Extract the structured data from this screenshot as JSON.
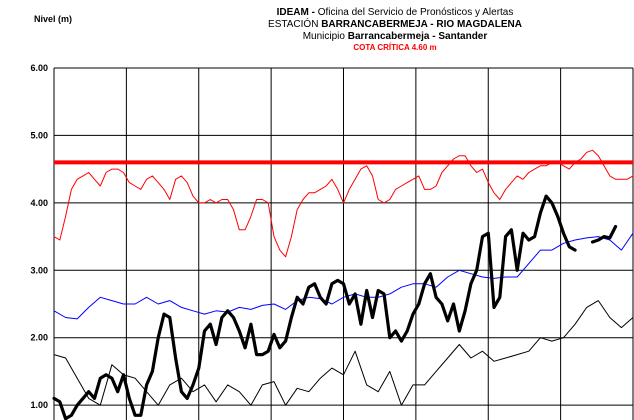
{
  "title": {
    "line1_bold": "IDEAM - ",
    "line1_rest": "Oficina del Servicio de Pronósticos y Alertas",
    "line2_pre": "ESTACIÓN ",
    "line2_bold": "BARRANCABERMEJA - RIO MAGDALENA",
    "line3_pre": "Municipio ",
    "line3_bold": "Barrancabermeja - Santander",
    "critical_label": "COTA CRÍTICA 4.60 m"
  },
  "chart_data": {
    "type": "line",
    "ylabel": "Nivel (m)",
    "ylim": [
      0.78,
      6.0
    ],
    "yticks": [
      1.0,
      2.0,
      3.0,
      4.0,
      5.0,
      6.0
    ],
    "ytick_labels": [
      "1.00",
      "2.00",
      "3.00",
      "4.00",
      "5.00",
      "6.00"
    ],
    "x_divisions": 8,
    "xlim": [
      0,
      100
    ],
    "grid": true,
    "critical_level": 4.6,
    "series": [
      {
        "color": "#ff0000",
        "width": 1,
        "x": [
          0,
          1,
          2,
          3,
          4,
          5,
          6,
          7,
          8,
          9,
          10,
          11,
          12,
          13,
          14,
          15,
          16,
          17,
          18,
          19,
          20,
          21,
          22,
          23,
          24,
          25,
          26,
          27,
          28,
          29,
          30,
          31,
          32,
          33,
          34,
          35,
          36,
          37,
          38,
          39,
          40,
          41,
          42,
          43,
          44,
          45,
          46,
          47,
          48,
          49,
          50,
          51,
          52,
          53,
          54,
          55,
          56,
          57,
          58,
          59,
          60,
          61,
          62,
          63,
          64,
          65,
          66,
          67,
          68,
          69,
          70,
          71,
          72,
          73,
          74,
          75,
          76,
          77,
          78,
          79,
          80,
          81,
          82,
          83,
          84,
          85,
          86,
          87,
          88,
          89,
          90,
          91,
          92,
          93,
          94,
          95,
          96,
          97,
          98,
          99,
          100
        ],
        "values": [
          3.5,
          3.45,
          3.8,
          4.2,
          4.35,
          4.4,
          4.45,
          4.35,
          4.25,
          4.45,
          4.5,
          4.5,
          4.45,
          4.3,
          4.25,
          4.2,
          4.35,
          4.4,
          4.3,
          4.2,
          4.05,
          4.35,
          4.4,
          4.3,
          4.1,
          4.0,
          4.0,
          4.05,
          4.0,
          4.05,
          4.05,
          3.9,
          3.6,
          3.6,
          3.8,
          4.05,
          4.05,
          4.0,
          3.5,
          3.3,
          3.2,
          3.5,
          3.9,
          4.05,
          4.15,
          4.15,
          4.2,
          4.25,
          4.35,
          4.2,
          4.0,
          4.2,
          4.35,
          4.5,
          4.55,
          4.4,
          4.05,
          4.0,
          4.05,
          4.2,
          4.25,
          4.3,
          4.35,
          4.4,
          4.2,
          4.2,
          4.25,
          4.45,
          4.55,
          4.65,
          4.7,
          4.7,
          4.55,
          4.45,
          4.5,
          4.3,
          4.15,
          4.05,
          4.2,
          4.3,
          4.4,
          4.35,
          4.45,
          4.5,
          4.55,
          4.55,
          4.6,
          4.6,
          4.55,
          4.5,
          4.6,
          4.65,
          4.75,
          4.78,
          4.7,
          4.55,
          4.4,
          4.35,
          4.35,
          4.35,
          4.4
        ]
      },
      {
        "color": "#0000ff",
        "width": 1,
        "x": [
          0,
          2,
          4,
          6,
          8,
          10,
          12,
          14,
          16,
          18,
          20,
          22,
          24,
          26,
          28,
          30,
          32,
          34,
          36,
          38,
          40,
          42,
          44,
          46,
          48,
          50,
          52,
          54,
          56,
          58,
          60,
          62,
          64,
          66,
          68,
          70,
          72,
          74,
          76,
          78,
          80,
          82,
          84,
          86,
          88,
          90,
          92,
          94,
          96,
          98,
          100
        ],
        "values": [
          2.4,
          2.3,
          2.28,
          2.45,
          2.6,
          2.55,
          2.5,
          2.5,
          2.6,
          2.5,
          2.55,
          2.45,
          2.4,
          2.35,
          2.4,
          2.38,
          2.45,
          2.42,
          2.48,
          2.5,
          2.42,
          2.55,
          2.6,
          2.58,
          2.5,
          2.6,
          2.65,
          2.6,
          2.6,
          2.65,
          2.75,
          2.8,
          2.8,
          2.75,
          2.9,
          3.0,
          2.95,
          2.9,
          2.88,
          2.9,
          2.9,
          3.1,
          3.3,
          3.3,
          3.4,
          3.45,
          3.48,
          3.5,
          3.45,
          3.3,
          3.55
        ]
      },
      {
        "color": "#000000",
        "width": 1,
        "x": [
          0,
          2,
          4,
          6,
          8,
          10,
          12,
          14,
          16,
          18,
          20,
          22,
          24,
          26,
          28,
          30,
          32,
          34,
          36,
          38,
          40,
          42,
          44,
          46,
          48,
          50,
          52,
          54,
          56,
          58,
          60,
          62,
          64,
          66,
          68,
          70,
          72,
          74,
          76,
          78,
          80,
          82,
          84,
          86,
          88,
          90,
          92,
          94,
          96,
          98,
          100
        ],
        "values": [
          1.75,
          1.7,
          1.4,
          1.1,
          1.0,
          1.6,
          1.45,
          1.4,
          1.2,
          1.0,
          1.3,
          1.4,
          1.2,
          1.3,
          1.05,
          1.3,
          1.2,
          1.0,
          1.3,
          1.35,
          1.0,
          1.25,
          1.2,
          1.4,
          1.55,
          1.45,
          1.8,
          1.3,
          1.2,
          1.5,
          1.0,
          1.3,
          1.3,
          1.5,
          1.7,
          1.9,
          1.7,
          1.8,
          1.65,
          1.7,
          1.75,
          1.8,
          2.0,
          1.95,
          2.0,
          2.2,
          2.45,
          2.55,
          2.3,
          2.15,
          2.3
        ]
      },
      {
        "color": "#000000",
        "width": 3.2,
        "x": [
          0,
          1,
          2,
          3,
          4,
          5,
          6,
          7,
          8,
          9,
          10,
          11,
          12,
          13,
          14,
          15,
          16,
          17,
          18,
          19,
          20,
          21,
          22,
          23,
          24,
          25,
          26,
          27,
          28,
          29,
          30,
          31,
          32,
          33,
          34,
          35,
          36,
          37,
          38,
          39,
          40,
          41,
          42,
          43,
          44,
          45,
          46,
          47,
          48,
          49,
          50,
          51,
          52,
          53,
          54,
          55,
          56,
          57,
          58,
          59,
          60,
          61,
          62,
          63,
          64,
          65,
          66,
          67,
          68,
          69,
          70,
          71,
          72,
          73,
          74,
          75,
          76,
          77,
          78,
          79,
          80,
          81,
          82,
          83,
          84,
          85,
          86,
          87
        ],
        "values": [
          1.1,
          1.05,
          0.8,
          0.85,
          1.0,
          1.1,
          1.2,
          1.1,
          1.4,
          1.45,
          1.4,
          1.2,
          1.45,
          1.1,
          0.85,
          0.85,
          1.3,
          1.5,
          2.0,
          2.35,
          2.3,
          1.7,
          1.2,
          1.1,
          1.3,
          1.55,
          2.1,
          2.2,
          1.9,
          2.3,
          2.4,
          2.3,
          2.1,
          1.85,
          2.2,
          1.75,
          1.75,
          1.8,
          2.05,
          1.85,
          1.95,
          2.3,
          2.6,
          2.5,
          2.75,
          2.8,
          2.6,
          2.5,
          2.8,
          2.85,
          2.8,
          2.5,
          2.65,
          2.2,
          2.7,
          2.3,
          2.7,
          2.65,
          2.0,
          2.1,
          1.95,
          2.1,
          2.35,
          2.5,
          2.8,
          2.95,
          2.6,
          2.5,
          2.25,
          2.5,
          2.1,
          2.4,
          2.8,
          3.0,
          3.5,
          3.55,
          2.45,
          2.6,
          3.5,
          3.6,
          3.0,
          3.55,
          3.45,
          3.5,
          3.85,
          4.1,
          4.0,
          3.8
        ]
      },
      {
        "color": "#000000",
        "width": 3.2,
        "x": [
          87,
          88,
          89,
          90
        ],
        "values": [
          3.8,
          3.55,
          3.35,
          3.3
        ]
      },
      {
        "color": "#000000",
        "width": 3.2,
        "x": [
          93,
          94,
          95,
          96,
          97
        ],
        "values": [
          3.42,
          3.45,
          3.5,
          3.48,
          3.65
        ]
      }
    ]
  }
}
